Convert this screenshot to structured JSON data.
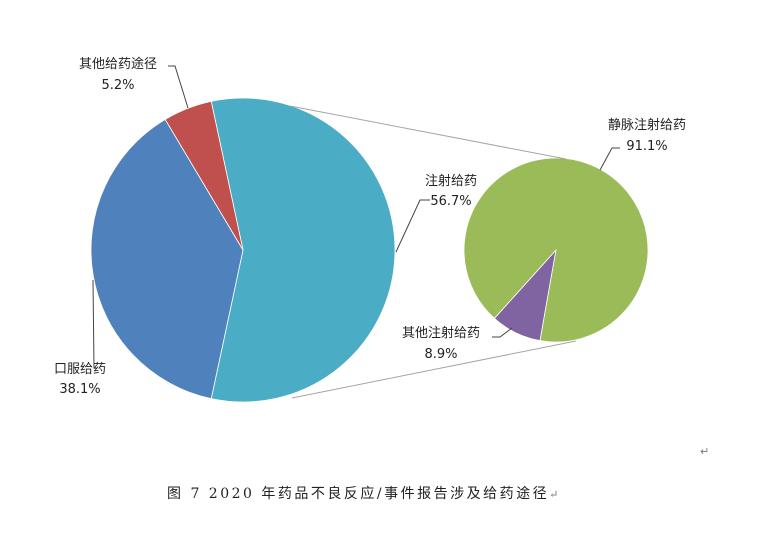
{
  "chart_data": {
    "type": "pie-of-pie",
    "main_pie": {
      "slices": [
        {
          "label": "注射给药",
          "value": 56.7,
          "value_label": "56.7%",
          "color": "#4BACC6"
        },
        {
          "label": "口服给药",
          "value": 38.1,
          "value_label": "38.1%",
          "color": "#4F81BD"
        },
        {
          "label": "其他给药途径",
          "value": 5.2,
          "value_label": "5.2%",
          "color": "#C0504D"
        }
      ]
    },
    "secondary_pie": {
      "expands": "注射给药",
      "slices": [
        {
          "label": "静脉注射给药",
          "value": 91.1,
          "value_label": "91.1%",
          "color": "#9BBB59"
        },
        {
          "label": "其他注射给药",
          "value": 8.9,
          "value_label": "8.9%",
          "color": "#8064A2"
        }
      ]
    },
    "legend": "none",
    "caption": "图 7   2020 年药品不良反应/事件报告涉及给药途径"
  },
  "return_mark": "↵"
}
